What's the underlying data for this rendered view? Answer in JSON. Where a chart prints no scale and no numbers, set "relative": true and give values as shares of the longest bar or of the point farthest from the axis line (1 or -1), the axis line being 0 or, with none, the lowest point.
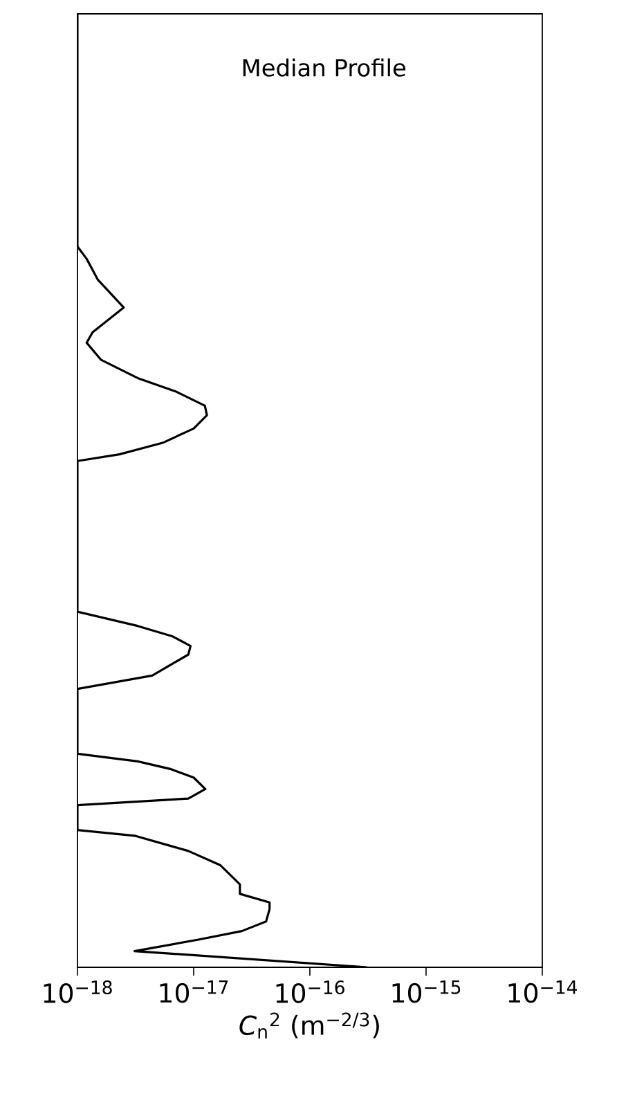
{
  "chart_data": {
    "type": "line",
    "title": "Median Profile",
    "xlabel": "*C*$_{n}$$^{2}$ (m$^{−2/3}$)",
    "relative": true,
    "log": "x",
    "grid": false,
    "marker": "none",
    "line_style": "solid",
    "tick_labels": "x",
    "xlim": [
      1e-18,
      1e-14
    ],
    "xticks": [
      {
        "value": 1e-18,
        "label": "10$^{−18}$"
      },
      {
        "value": 1e-17,
        "label": "10$^{−17}$"
      },
      {
        "value": 1e-16,
        "label": "10$^{−16}$"
      },
      {
        "value": 1e-15,
        "label": "10$^{−15}$"
      },
      {
        "value": 1e-14,
        "label": "10$^{−14}$"
      }
    ],
    "series": [
      {
        "color": "#000000",
        "x": [
          3.1e-16,
          3.1e-18,
          1.1e-17,
          2.6e-17,
          4.2e-17,
          4.5e-17,
          4.5e-17,
          2.5e-17,
          2.5e-17,
          1.7e-17,
          9e-18,
          3.1e-18,
          1e-18,
          1e-18,
          9e-18,
          1.26e-17,
          1e-17,
          6.3e-18,
          3.3e-18,
          1e-18,
          1e-18,
          4.4e-18,
          9e-18,
          9.4e-18,
          6.6e-18,
          3.3e-18,
          1e-18,
          1e-18,
          2.3e-18,
          5.4e-18,
          1e-17,
          1.3e-17,
          1.25e-17,
          7e-18,
          3.3e-18,
          1.6e-18,
          1.2e-18,
          1.35e-18,
          2.5e-18,
          1.5e-18,
          1.2e-18,
          1e-18,
          1e-18
        ],
        "values": [
          0,
          0.017,
          0.029,
          0.038,
          0.048,
          0.061,
          0.068,
          0.077,
          0.087,
          0.107,
          0.122,
          0.138,
          0.144,
          0.17,
          0.177,
          0.187,
          0.199,
          0.208,
          0.216,
          0.224,
          0.292,
          0.306,
          0.328,
          0.337,
          0.347,
          0.358,
          0.373,
          0.531,
          0.538,
          0.55,
          0.565,
          0.579,
          0.589,
          0.604,
          0.618,
          0.637,
          0.655,
          0.666,
          0.692,
          0.721,
          0.743,
          0.756,
          1.0
        ]
      }
    ]
  }
}
